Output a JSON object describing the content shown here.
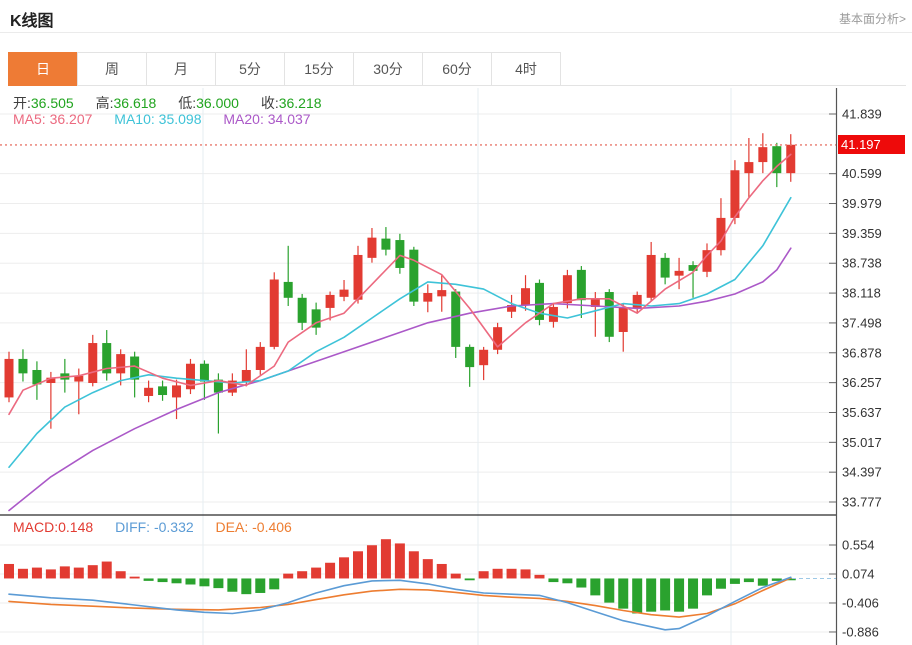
{
  "header": {
    "title": "K线图",
    "link_label": "基本面分析>"
  },
  "tabs": {
    "active_index": 0,
    "items": [
      {
        "label": "日"
      },
      {
        "label": "周"
      },
      {
        "label": "月"
      },
      {
        "label": "5分"
      },
      {
        "label": "15分"
      },
      {
        "label": "30分"
      },
      {
        "label": "60分"
      },
      {
        "label": "4时"
      }
    ]
  },
  "legend": {
    "ohlc": [
      {
        "label": "开:",
        "value": "36.505"
      },
      {
        "label": "高:",
        "value": "36.618"
      },
      {
        "label": "低:",
        "value": "36.000"
      },
      {
        "label": "收:",
        "value": "36.218"
      }
    ],
    "ma": [
      {
        "label": "MA5:",
        "value": "36.207"
      },
      {
        "label": "MA10:",
        "value": "35.098"
      },
      {
        "label": "MA20:",
        "value": "34.037"
      }
    ]
  },
  "macd_legend": [
    {
      "label": "MACD:",
      "value": "0.148"
    },
    {
      "label": "DIFF:",
      "value": "-0.332"
    },
    {
      "label": "DEA:",
      "value": "-0.406"
    }
  ],
  "price_tag": {
    "value": "41.197"
  },
  "colors": {
    "accent": "#ee7b35",
    "up": "#e23b32",
    "down": "#2aa22e",
    "value_green": "#21a41f",
    "ma5": "#ec6a80",
    "ma10": "#3ec3d8",
    "ma20": "#ab59c8",
    "diff": "#5b9bd5",
    "dea": "#ed7d31",
    "price_line": "#e8796d",
    "tag_bg": "#ee0a0a"
  },
  "chart_data": [
    {
      "type": "candlestick",
      "panel": "main",
      "title": "K线图 (日)",
      "legend_entries": [
        "MA5",
        "MA10",
        "MA20"
      ],
      "grid": true,
      "legend_position": "top-left",
      "y_ticks": [
        41.839,
        40.599,
        39.979,
        39.359,
        38.738,
        38.118,
        37.498,
        36.878,
        36.257,
        35.637,
        35.017,
        34.397,
        33.777
      ],
      "ylim": [
        33.52,
        42.38
      ],
      "current_price": 41.197,
      "candles_format": [
        "open",
        "close",
        "low",
        "high"
      ],
      "candles": [
        [
          35.95,
          36.75,
          35.85,
          36.9
        ],
        [
          36.75,
          36.45,
          36.28,
          36.95
        ],
        [
          36.52,
          36.22,
          35.9,
          36.7
        ],
        [
          36.25,
          36.36,
          35.3,
          36.48
        ],
        [
          36.45,
          36.32,
          36.05,
          36.75
        ],
        [
          36.28,
          36.4,
          35.6,
          36.55
        ],
        [
          36.25,
          37.08,
          36.18,
          37.25
        ],
        [
          37.08,
          36.45,
          36.3,
          37.35
        ],
        [
          36.45,
          36.85,
          36.2,
          36.95
        ],
        [
          36.8,
          36.32,
          35.95,
          36.9
        ],
        [
          35.98,
          36.15,
          35.85,
          36.3
        ],
        [
          36.18,
          36.0,
          35.88,
          36.3
        ],
        [
          35.95,
          36.2,
          35.5,
          36.32
        ],
        [
          36.12,
          36.65,
          36.02,
          36.75
        ],
        [
          36.65,
          36.28,
          35.9,
          36.72
        ],
        [
          36.32,
          36.05,
          35.2,
          36.45
        ],
        [
          36.05,
          36.3,
          35.98,
          36.45
        ],
        [
          36.28,
          36.52,
          36.18,
          36.95
        ],
        [
          36.52,
          37.0,
          36.42,
          37.1
        ],
        [
          37.0,
          38.4,
          36.95,
          38.55
        ],
        [
          38.35,
          38.02,
          37.85,
          39.1
        ],
        [
          38.02,
          37.5,
          37.35,
          38.1
        ],
        [
          37.78,
          37.4,
          37.25,
          37.92
        ],
        [
          37.81,
          38.08,
          37.55,
          38.15
        ],
        [
          38.04,
          38.19,
          37.95,
          38.39
        ],
        [
          37.98,
          38.91,
          37.9,
          39.1
        ],
        [
          38.85,
          39.27,
          38.75,
          39.47
        ],
        [
          39.25,
          39.02,
          38.9,
          39.49
        ],
        [
          39.22,
          38.64,
          38.52,
          39.35
        ],
        [
          39.02,
          37.94,
          37.85,
          39.08
        ],
        [
          37.94,
          38.12,
          37.72,
          38.3
        ],
        [
          38.05,
          38.18,
          37.73,
          38.49
        ],
        [
          38.15,
          37.0,
          36.77,
          38.2
        ],
        [
          37.0,
          36.58,
          36.17,
          37.05
        ],
        [
          36.62,
          36.94,
          36.31,
          37.0
        ],
        [
          36.94,
          37.41,
          36.85,
          37.5
        ],
        [
          37.73,
          37.87,
          37.6,
          38.08
        ],
        [
          37.87,
          38.22,
          37.75,
          38.49
        ],
        [
          38.33,
          37.56,
          37.45,
          38.4
        ],
        [
          37.52,
          37.83,
          37.4,
          37.9
        ],
        [
          37.91,
          38.49,
          37.8,
          38.6
        ],
        [
          38.6,
          37.97,
          37.6,
          38.68
        ],
        [
          37.83,
          38.01,
          37.21,
          38.14
        ],
        [
          38.14,
          37.21,
          37.1,
          38.2
        ],
        [
          37.31,
          37.81,
          36.9,
          37.88
        ],
        [
          37.81,
          38.08,
          37.7,
          38.15
        ],
        [
          38.02,
          38.91,
          37.95,
          39.18
        ],
        [
          38.85,
          38.44,
          38.3,
          38.95
        ],
        [
          38.48,
          38.58,
          38.2,
          38.85
        ],
        [
          38.7,
          38.58,
          38.02,
          38.78
        ],
        [
          38.56,
          39.01,
          38.45,
          39.15
        ],
        [
          39.01,
          39.68,
          38.9,
          40.09
        ],
        [
          39.68,
          40.67,
          39.55,
          40.88
        ],
        [
          40.61,
          40.84,
          40.11,
          41.34
        ],
        [
          40.84,
          41.15,
          40.61,
          41.44
        ],
        [
          41.17,
          40.61,
          40.32,
          41.24
        ],
        [
          40.61,
          41.2,
          40.43,
          41.42
        ]
      ],
      "ma5_points": [
        [
          0,
          35.6
        ],
        [
          1,
          36.1
        ],
        [
          3,
          36.35
        ],
        [
          5,
          36.4
        ],
        [
          7,
          36.55
        ],
        [
          9,
          36.6
        ],
        [
          11,
          36.35
        ],
        [
          13,
          36.2
        ],
        [
          15,
          36.3
        ],
        [
          17,
          36.2
        ],
        [
          19,
          36.6
        ],
        [
          20,
          37.1
        ],
        [
          22,
          37.5
        ],
        [
          24,
          37.7
        ],
        [
          26,
          38.3
        ],
        [
          28,
          38.9
        ],
        [
          29,
          38.8
        ],
        [
          31,
          38.5
        ],
        [
          33,
          37.8
        ],
        [
          35,
          37.0
        ],
        [
          37,
          37.5
        ],
        [
          39,
          37.9
        ],
        [
          41,
          38.0
        ],
        [
          43,
          38.0
        ],
        [
          45,
          37.7
        ],
        [
          47,
          38.2
        ],
        [
          49,
          38.55
        ],
        [
          50,
          38.9
        ],
        [
          51,
          39.2
        ],
        [
          52,
          39.7
        ],
        [
          53,
          40.1
        ],
        [
          54,
          40.45
        ],
        [
          55,
          40.75
        ],
        [
          56,
          41.0
        ]
      ],
      "ma10_points": [
        [
          0,
          34.5
        ],
        [
          2,
          35.2
        ],
        [
          4,
          35.75
        ],
        [
          6,
          36.05
        ],
        [
          8,
          36.3
        ],
        [
          10,
          36.42
        ],
        [
          12,
          36.35
        ],
        [
          14,
          36.3
        ],
        [
          16,
          36.25
        ],
        [
          18,
          36.3
        ],
        [
          20,
          36.5
        ],
        [
          22,
          36.9
        ],
        [
          24,
          37.2
        ],
        [
          26,
          37.6
        ],
        [
          28,
          38.0
        ],
        [
          30,
          38.35
        ],
        [
          32,
          38.3
        ],
        [
          34,
          38.2
        ],
        [
          36,
          37.9
        ],
        [
          38,
          37.7
        ],
        [
          40,
          37.6
        ],
        [
          42,
          37.75
        ],
        [
          44,
          37.9
        ],
        [
          46,
          37.85
        ],
        [
          48,
          37.9
        ],
        [
          50,
          38.1
        ],
        [
          52,
          38.4
        ],
        [
          54,
          39.1
        ],
        [
          55,
          39.6
        ],
        [
          56,
          40.1
        ]
      ],
      "ma20_points": [
        [
          0,
          33.6
        ],
        [
          3,
          34.3
        ],
        [
          6,
          34.85
        ],
        [
          9,
          35.3
        ],
        [
          12,
          35.7
        ],
        [
          15,
          36.05
        ],
        [
          18,
          36.3
        ],
        [
          21,
          36.6
        ],
        [
          24,
          36.9
        ],
        [
          27,
          37.2
        ],
        [
          30,
          37.5
        ],
        [
          33,
          37.7
        ],
        [
          36,
          37.85
        ],
        [
          39,
          37.9
        ],
        [
          42,
          37.85
        ],
        [
          45,
          37.8
        ],
        [
          48,
          37.85
        ],
        [
          50,
          37.95
        ],
        [
          52,
          38.1
        ],
        [
          54,
          38.35
        ],
        [
          55,
          38.6
        ],
        [
          56,
          39.05
        ]
      ]
    },
    {
      "type": "bar",
      "panel": "macd",
      "title": "MACD",
      "legend_entries": [
        "MACD",
        "DIFF",
        "DEA"
      ],
      "y_ticks": [
        0.554,
        0.074,
        -0.406,
        -0.886
      ],
      "ylim": [
        -1.1,
        0.75
      ],
      "histogram": [
        0.24,
        0.16,
        0.18,
        0.15,
        0.2,
        0.18,
        0.22,
        0.28,
        0.12,
        0.03,
        -0.04,
        -0.06,
        -0.08,
        -0.1,
        -0.13,
        -0.16,
        -0.22,
        -0.26,
        -0.24,
        -0.18,
        0.08,
        0.12,
        0.18,
        0.26,
        0.35,
        0.45,
        0.55,
        0.65,
        0.58,
        0.45,
        0.32,
        0.24,
        0.08,
        -0.03,
        0.12,
        0.16,
        0.16,
        0.15,
        0.06,
        -0.06,
        -0.08,
        -0.15,
        -0.28,
        -0.4,
        -0.5,
        -0.58,
        -0.55,
        -0.53,
        -0.55,
        -0.5,
        -0.28,
        -0.17,
        -0.09,
        -0.06,
        -0.12,
        -0.04,
        -0.03
      ],
      "diff_points": [
        [
          0,
          -0.26
        ],
        [
          3,
          -0.32
        ],
        [
          6,
          -0.36
        ],
        [
          9,
          -0.44
        ],
        [
          12,
          -0.52
        ],
        [
          14,
          -0.56
        ],
        [
          16,
          -0.58
        ],
        [
          18,
          -0.52
        ],
        [
          20,
          -0.4
        ],
        [
          22,
          -0.24
        ],
        [
          24,
          -0.12
        ],
        [
          26,
          -0.04
        ],
        [
          28,
          -0.03
        ],
        [
          30,
          -0.09
        ],
        [
          32,
          -0.18
        ],
        [
          34,
          -0.24
        ],
        [
          36,
          -0.26
        ],
        [
          38,
          -0.28
        ],
        [
          40,
          -0.4
        ],
        [
          42,
          -0.55
        ],
        [
          44,
          -0.7
        ],
        [
          46,
          -0.8
        ],
        [
          47,
          -0.85
        ],
        [
          48,
          -0.83
        ],
        [
          50,
          -0.62
        ],
        [
          52,
          -0.38
        ],
        [
          54,
          -0.15
        ],
        [
          56,
          0.02
        ]
      ],
      "dea_points": [
        [
          0,
          -0.38
        ],
        [
          3,
          -0.43
        ],
        [
          6,
          -0.46
        ],
        [
          9,
          -0.49
        ],
        [
          12,
          -0.51
        ],
        [
          15,
          -0.52
        ],
        [
          18,
          -0.48
        ],
        [
          20,
          -0.43
        ],
        [
          22,
          -0.35
        ],
        [
          24,
          -0.27
        ],
        [
          26,
          -0.21
        ],
        [
          28,
          -0.18
        ],
        [
          30,
          -0.19
        ],
        [
          32,
          -0.23
        ],
        [
          34,
          -0.28
        ],
        [
          36,
          -0.31
        ],
        [
          38,
          -0.33
        ],
        [
          40,
          -0.38
        ],
        [
          42,
          -0.45
        ],
        [
          44,
          -0.53
        ],
        [
          46,
          -0.6
        ],
        [
          48,
          -0.64
        ],
        [
          50,
          -0.58
        ],
        [
          52,
          -0.42
        ],
        [
          54,
          -0.2
        ],
        [
          56,
          0.01
        ]
      ]
    }
  ]
}
